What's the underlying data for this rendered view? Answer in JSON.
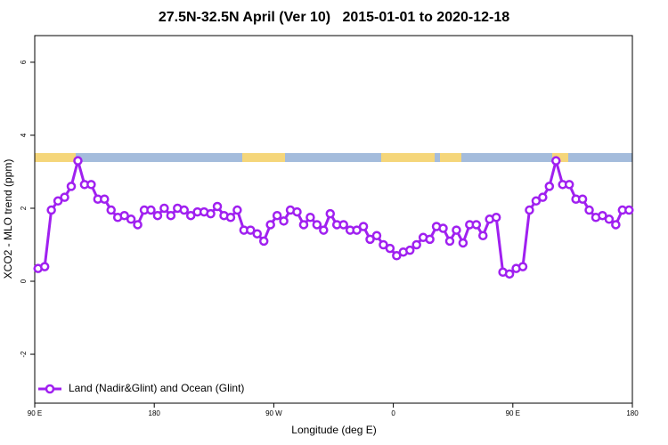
{
  "chart_data": {
    "type": "line",
    "title": "27.5N-32.5N April (Ver 10)   2015-01-01 to 2020-12-18",
    "xlabel": "Longitude (deg E)",
    "ylabel": "XCO2 - MLO trend (ppm)",
    "xlim": [
      90,
      540
    ],
    "ylim": [
      -3.34,
      6.73
    ],
    "xticks": [
      {
        "value": 90,
        "label": "90 E"
      },
      180,
      {
        "value": 270,
        "label": "90 W"
      },
      {
        "value": 360,
        "label": "0"
      },
      {
        "value": 450,
        "label": "90 E"
      },
      {
        "value": 540,
        "label": "180"
      }
    ],
    "yticks": [
      -2,
      0,
      2,
      4,
      6
    ],
    "legend": "bottom-left",
    "x": [
      92.5,
      97.5,
      102.5,
      107.5,
      112.5,
      117.5,
      122.5,
      127.5,
      132.5,
      137.5,
      142.5,
      147.5,
      152.5,
      157.5,
      162.5,
      167.5,
      172.5,
      177.5,
      182.5,
      187.5,
      192.5,
      197.5,
      202.5,
      207.5,
      212.5,
      217.5,
      222.5,
      227.5,
      232.5,
      237.5,
      242.5,
      247.5,
      252.5,
      257.5,
      262.5,
      267.5,
      272.5,
      277.5,
      282.5,
      287.5,
      292.5,
      297.5,
      302.5,
      307.5,
      312.5,
      317.5,
      322.5,
      327.5,
      332.5,
      337.5,
      342.5,
      347.5,
      352.5,
      357.5,
      362.5,
      367.5,
      372.5,
      377.5,
      382.5,
      387.5,
      392.5,
      397.5,
      402.5,
      407.5,
      412.5,
      417.5,
      422.5,
      427.5,
      432.5,
      437.5,
      442.5,
      447.5,
      452.5,
      457.5,
      462.5,
      467.5,
      472.5,
      477.5,
      482.5,
      487.5,
      492.5,
      497.5,
      502.5,
      507.5,
      512.5,
      517.5,
      522.5,
      527.5,
      532.5,
      537.5
    ],
    "series": [
      {
        "name": "Land (Nadir&Glint) and Ocean (Glint)",
        "color": "#a020f0",
        "values": [
          0.35,
          0.4,
          1.95,
          2.2,
          2.3,
          2.6,
          3.3,
          2.65,
          2.65,
          2.25,
          2.25,
          1.95,
          1.75,
          1.8,
          1.7,
          1.55,
          1.95,
          1.95,
          1.8,
          2.0,
          1.8,
          2.0,
          1.95,
          1.8,
          1.9,
          1.9,
          1.85,
          2.05,
          1.8,
          1.75,
          1.95,
          1.4,
          1.4,
          1.3,
          1.1,
          1.55,
          1.8,
          1.65,
          1.95,
          1.9,
          1.55,
          1.75,
          1.55,
          1.4,
          1.85,
          1.55,
          1.55,
          1.4,
          1.4,
          1.5,
          1.15,
          1.25,
          1.0,
          0.9,
          0.7,
          0.8,
          0.85,
          1.0,
          1.2,
          1.15,
          1.5,
          1.45,
          1.1,
          1.4,
          1.05,
          1.55,
          1.55,
          1.25,
          1.7,
          1.75,
          0.25,
          0.2,
          0.35,
          0.4,
          1.95,
          2.2,
          2.3,
          2.6,
          3.3,
          2.65,
          2.65,
          2.25,
          2.25,
          1.95,
          1.75,
          1.8,
          1.7,
          1.55,
          1.95,
          1.95
        ]
      }
    ]
  }
}
